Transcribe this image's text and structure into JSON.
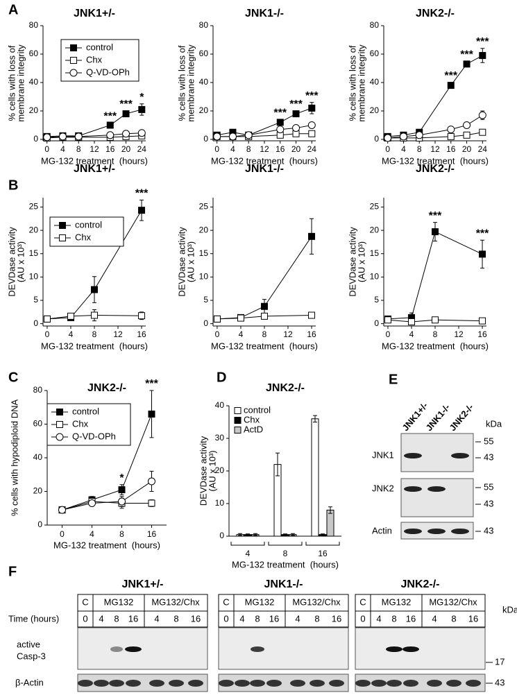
{
  "panels": [
    "A",
    "B",
    "C",
    "D",
    "E",
    "F"
  ],
  "chart_data": [
    {
      "type": "line",
      "title": "JNK1+/-",
      "xlabel": "MG-132 treatment  (hours)",
      "ylabel": [
        "% cells with loss of",
        "membrane integrity"
      ],
      "x": [
        0,
        4,
        8,
        16,
        20,
        24
      ],
      "xlim": [
        -1,
        25
      ],
      "xticks": [
        0,
        4,
        8,
        12,
        16,
        20,
        24
      ],
      "ylim": [
        -1,
        80
      ],
      "yticks": [
        0,
        20,
        40,
        60,
        80
      ],
      "legend": "upper left",
      "series": [
        {
          "name": "control",
          "color": "#000000",
          "marker": "square",
          "values": [
            2,
            2.5,
            2.5,
            10,
            18,
            21
          ],
          "errors": [
            1,
            1,
            1,
            1.5,
            2,
            4
          ],
          "significance": [
            null,
            null,
            null,
            "***",
            "***",
            "*"
          ]
        },
        {
          "name": "Chx",
          "color": "#ffffff",
          "marker": "square",
          "values": [
            1,
            1.5,
            1.5,
            1.5,
            2,
            2.5
          ],
          "errors": [
            0.5,
            0.5,
            0.5,
            0.5,
            0.5,
            0.5
          ]
        },
        {
          "name": "Q-VD-OPh",
          "color": "#ffffff",
          "marker": "circle",
          "values": [
            1.5,
            2,
            2,
            3,
            4,
            4.5
          ],
          "errors": [
            0.5,
            0.5,
            0.5,
            0.5,
            0.5,
            0.5
          ]
        }
      ]
    },
    {
      "type": "line",
      "title": "JNK1-/-",
      "xlabel": "MG-132 treatment  (hours)",
      "ylabel": [
        "% cells with loss of",
        "membrane integrity"
      ],
      "x": [
        0,
        4,
        8,
        16,
        20,
        24
      ],
      "xlim": [
        -1,
        25
      ],
      "xticks": [
        0,
        4,
        8,
        12,
        16,
        20,
        24
      ],
      "ylim": [
        -1,
        80
      ],
      "yticks": [
        0,
        20,
        40,
        60,
        80
      ],
      "series": [
        {
          "name": "control",
          "color": "#000000",
          "marker": "square",
          "values": [
            3,
            5,
            3,
            12,
            18,
            22
          ],
          "errors": [
            1,
            1,
            1,
            2,
            2,
            4
          ],
          "significance": [
            null,
            null,
            null,
            "***",
            "***",
            "***"
          ]
        },
        {
          "name": "Chx",
          "color": "#ffffff",
          "marker": "square",
          "values": [
            2,
            2,
            2,
            3,
            4,
            4
          ],
          "errors": [
            0.5,
            0.5,
            0.5,
            0.5,
            1,
            1
          ]
        },
        {
          "name": "Q-VD-OPh",
          "color": "#ffffff",
          "marker": "circle",
          "values": [
            2,
            2,
            3,
            7,
            8,
            10
          ],
          "errors": [
            0.5,
            0.5,
            0.5,
            1,
            1,
            1
          ]
        }
      ]
    },
    {
      "type": "line",
      "title": "JNK2-/-",
      "xlabel": "MG-132 treatment  (hours)",
      "ylabel": [
        "% cells with loss of",
        "membrane integrity"
      ],
      "x": [
        0,
        4,
        8,
        16,
        20,
        24
      ],
      "xlim": [
        -1,
        25
      ],
      "xticks": [
        0,
        4,
        8,
        12,
        16,
        20,
        24
      ],
      "ylim": [
        -1,
        80
      ],
      "yticks": [
        0,
        20,
        40,
        60,
        80
      ],
      "series": [
        {
          "name": "control",
          "color": "#000000",
          "marker": "square",
          "values": [
            2,
            3,
            5,
            38,
            53,
            59
          ],
          "errors": [
            1,
            1,
            1,
            2,
            2,
            5
          ],
          "significance": [
            null,
            null,
            null,
            "***",
            "***",
            "***"
          ]
        },
        {
          "name": "Chx",
          "color": "#ffffff",
          "marker": "square",
          "values": [
            1,
            1,
            1,
            2,
            3,
            5
          ],
          "errors": [
            0.5,
            0.5,
            0.5,
            0.5,
            1,
            1
          ]
        },
        {
          "name": "Q-VD-OPh",
          "color": "#ffffff",
          "marker": "circle",
          "values": [
            1,
            2,
            3,
            7,
            10,
            17
          ],
          "errors": [
            0.5,
            0.5,
            0.5,
            1,
            1,
            3
          ]
        }
      ]
    },
    {
      "type": "line",
      "title": "JNK1+/-",
      "xlabel": "MG-132 treatment  (hours)",
      "ylabel": [
        "DEVDase activity",
        "(AU x 10³)"
      ],
      "x": [
        0,
        4,
        8,
        16
      ],
      "xlim": [
        -0.7,
        16.7
      ],
      "xticks": [
        0,
        4,
        8,
        12,
        16
      ],
      "ylim": [
        -0.5,
        27
      ],
      "yticks": [
        0,
        5,
        10,
        15,
        20,
        25
      ],
      "legend": "upper left",
      "series": [
        {
          "name": "control",
          "color": "#000000",
          "marker": "square",
          "values": [
            1,
            1.3,
            7.3,
            24.3
          ],
          "errors": [
            0.3,
            0.5,
            2.8,
            2.2
          ],
          "significance": [
            null,
            null,
            null,
            "***"
          ]
        },
        {
          "name": "Chx",
          "color": "#ffffff",
          "marker": "square",
          "values": [
            1,
            1.6,
            1.8,
            1.7
          ],
          "errors": [
            0.3,
            0.5,
            1.2,
            0.8
          ]
        }
      ]
    },
    {
      "type": "line",
      "title": "JNK1-/-",
      "xlabel": "MG-132 treatment  (hours)",
      "ylabel": [
        "DEVDase activity",
        "(AU x 10³)"
      ],
      "x": [
        0,
        4,
        8,
        16
      ],
      "xlim": [
        -0.7,
        16.7
      ],
      "xticks": [
        0,
        4,
        8,
        12,
        16
      ],
      "ylim": [
        -0.5,
        27
      ],
      "yticks": [
        0,
        5,
        10,
        15,
        20,
        25
      ],
      "series": [
        {
          "name": "control",
          "color": "#000000",
          "marker": "square",
          "values": [
            1,
            1.3,
            3.7,
            18.7
          ],
          "errors": [
            0.2,
            0.4,
            1.5,
            3.8
          ]
        },
        {
          "name": "Chx",
          "color": "#ffffff",
          "marker": "square",
          "values": [
            1,
            1.2,
            1.6,
            1.8
          ],
          "errors": [
            0.2,
            0.3,
            0.3,
            0.3
          ]
        }
      ]
    },
    {
      "type": "line",
      "title": "JNK2-/-",
      "xlabel": "MG-132 treatment  (hours)",
      "ylabel": [
        "DEVDase activity",
        "(AU x 10³)"
      ],
      "x": [
        0,
        4,
        8,
        16
      ],
      "xlim": [
        -0.7,
        16.7
      ],
      "xticks": [
        0,
        4,
        8,
        12,
        16
      ],
      "ylim": [
        -0.5,
        27
      ],
      "yticks": [
        0,
        5,
        10,
        15,
        20,
        25
      ],
      "series": [
        {
          "name": "control",
          "color": "#000000",
          "marker": "square",
          "values": [
            1,
            1.3,
            19.7,
            14.9
          ],
          "errors": [
            0.5,
            1,
            2,
            3
          ],
          "significance": [
            null,
            null,
            "***",
            "***"
          ]
        },
        {
          "name": "Chx",
          "color": "#ffffff",
          "marker": "square",
          "values": [
            0.8,
            0.4,
            0.8,
            0.6
          ],
          "errors": [
            0.3,
            0.3,
            0.3,
            0.3
          ]
        }
      ]
    },
    {
      "type": "line",
      "title": "JNK2-/-",
      "xlabel": "MG-132 treatment  (hours)",
      "ylabel": [
        "% cells with hypodiploid DNA"
      ],
      "categories": [
        "0",
        "4",
        "8",
        "16"
      ],
      "ylim": [
        0,
        80
      ],
      "yticks": [
        0,
        20,
        40,
        60,
        80
      ],
      "legend": "upper left",
      "series": [
        {
          "name": "control",
          "color": "#000000",
          "marker": "square",
          "values": [
            9,
            15,
            21,
            66
          ],
          "errors": [
            1,
            2,
            3,
            14
          ],
          "significance": [
            null,
            null,
            "*",
            "***"
          ]
        },
        {
          "name": "Chx",
          "color": "#ffffff",
          "marker": "square",
          "values": [
            9,
            14,
            13,
            13
          ],
          "errors": [
            1,
            1,
            3,
            2
          ]
        },
        {
          "name": "Q-VD-OPh",
          "color": "#ffffff",
          "marker": "circle",
          "values": [
            9,
            13,
            14,
            26
          ],
          "errors": [
            1,
            1,
            3,
            6
          ]
        }
      ]
    },
    {
      "type": "bar",
      "title": "JNK2-/-",
      "xlabel": "MG-132 treatment  (hours)",
      "ylabel": [
        "DEVDase activity",
        "(AU x 10³)"
      ],
      "categories": [
        "4",
        "8",
        "16"
      ],
      "ylim": [
        0,
        40
      ],
      "yticks": [
        0,
        10,
        20,
        30,
        40
      ],
      "legend": "upper left",
      "series": [
        {
          "name": "control",
          "color": "#ffffff",
          "values": [
            0.5,
            22,
            36
          ],
          "errors": [
            0.3,
            3.5,
            1
          ]
        },
        {
          "name": "Chx",
          "color": "#000000",
          "values": [
            0.5,
            0.5,
            0.5
          ],
          "errors": [
            0.2,
            0.2,
            0.2
          ]
        },
        {
          "name": "ActD",
          "color": "#c8c8c8",
          "values": [
            0.5,
            0.5,
            8
          ],
          "errors": [
            0.3,
            0.3,
            1
          ]
        }
      ]
    }
  ],
  "blot_e": {
    "lanes": [
      "JNK1+/-",
      "JNK1-/-",
      "JNK2-/-"
    ],
    "kda": "kDa",
    "rows": [
      {
        "label": "JNK1",
        "markers": [
          55,
          43
        ]
      },
      {
        "label": "JNK2",
        "markers": [
          55,
          43
        ]
      },
      {
        "label": "Actin",
        "markers": [
          43
        ]
      }
    ]
  },
  "blot_f": {
    "groups": [
      "JNK1+/-",
      "JNK1-/-",
      "JNK2-/-"
    ],
    "header": [
      "C",
      "MG132",
      "MG132/Chx"
    ],
    "time_label": "Time (hours)",
    "times": [
      0,
      4,
      8,
      16,
      4,
      8,
      16
    ],
    "rows": [
      [
        "active",
        "Casp-3"
      ],
      [
        "β-Actin"
      ]
    ],
    "kda": "kDa",
    "markers": [
      17,
      43
    ]
  }
}
